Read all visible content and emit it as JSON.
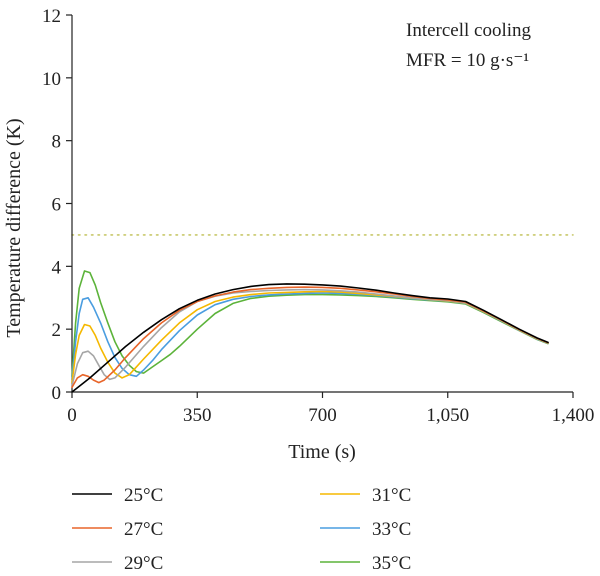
{
  "chart_data": {
    "type": "line",
    "xlabel": "Time (s)",
    "ylabel": "Temperature difference (K)",
    "xlim": [
      0,
      1400
    ],
    "ylim": [
      0,
      12
    ],
    "xticks": [
      0,
      350,
      700,
      1050,
      1400
    ],
    "xtick_labels": [
      "0",
      "350",
      "700",
      "1,050",
      "1,400"
    ],
    "yticks": [
      0,
      2,
      4,
      6,
      8,
      10,
      12
    ],
    "ytick_labels": [
      "0",
      "2",
      "4",
      "6",
      "8",
      "10",
      "12"
    ],
    "annotations": [
      "Intercell cooling",
      "MFR = 10 g·s⁻¹"
    ],
    "reference_line": {
      "y": 5,
      "style": "dotted",
      "color": "#c8c86a"
    },
    "grid": false,
    "legend_position": "bottom",
    "series": [
      {
        "name": "25°C",
        "color": "#000000",
        "x": [
          0,
          50,
          100,
          150,
          200,
          250,
          300,
          350,
          400,
          450,
          500,
          550,
          600,
          650,
          700,
          750,
          800,
          850,
          900,
          950,
          1000,
          1050,
          1100,
          1150,
          1200,
          1250,
          1300,
          1330
        ],
        "y": [
          0,
          0.45,
          0.95,
          1.45,
          1.9,
          2.3,
          2.65,
          2.92,
          3.12,
          3.26,
          3.36,
          3.42,
          3.44,
          3.43,
          3.41,
          3.37,
          3.31,
          3.24,
          3.15,
          3.07,
          3.0,
          2.96,
          2.88,
          2.6,
          2.3,
          2.0,
          1.72,
          1.58
        ]
      },
      {
        "name": "27°C",
        "color": "#e8652a",
        "x": [
          0,
          15,
          30,
          45,
          60,
          75,
          90,
          120,
          150,
          200,
          250,
          300,
          350,
          400,
          450,
          500,
          550,
          600,
          650,
          700,
          750,
          800,
          850,
          900,
          950,
          1000,
          1050,
          1100,
          1150,
          1200,
          1250,
          1300,
          1330
        ],
        "y": [
          0.15,
          0.45,
          0.55,
          0.5,
          0.38,
          0.3,
          0.38,
          0.7,
          1.1,
          1.7,
          2.2,
          2.6,
          2.88,
          3.06,
          3.18,
          3.26,
          3.3,
          3.33,
          3.34,
          3.33,
          3.3,
          3.25,
          3.19,
          3.12,
          3.04,
          2.98,
          2.93,
          2.86,
          2.58,
          2.29,
          1.99,
          1.71,
          1.57
        ]
      },
      {
        "name": "29°C",
        "color": "#a6a6a6",
        "x": [
          0,
          15,
          30,
          45,
          60,
          75,
          90,
          105,
          120,
          150,
          200,
          250,
          300,
          350,
          400,
          450,
          500,
          550,
          600,
          650,
          700,
          750,
          800,
          850,
          900,
          950,
          1000,
          1050,
          1100,
          1150,
          1200,
          1250,
          1300,
          1330
        ],
        "y": [
          0.2,
          0.9,
          1.25,
          1.3,
          1.15,
          0.85,
          0.55,
          0.4,
          0.45,
          0.8,
          1.45,
          2.05,
          2.55,
          2.88,
          3.05,
          3.15,
          3.2,
          3.23,
          3.25,
          3.26,
          3.25,
          3.22,
          3.18,
          3.12,
          3.06,
          3.0,
          2.95,
          2.91,
          2.84,
          2.57,
          2.28,
          1.98,
          1.7,
          1.57
        ]
      },
      {
        "name": "31°C",
        "color": "#f5b800",
        "x": [
          0,
          10,
          20,
          35,
          50,
          65,
          80,
          100,
          120,
          140,
          160,
          180,
          200,
          250,
          300,
          350,
          400,
          450,
          500,
          550,
          600,
          650,
          700,
          750,
          800,
          850,
          900,
          950,
          1000,
          1050,
          1100,
          1150,
          1200,
          1250,
          1300,
          1330
        ],
        "y": [
          0.3,
          1.2,
          1.8,
          2.15,
          2.1,
          1.8,
          1.4,
          0.95,
          0.6,
          0.45,
          0.55,
          0.8,
          1.05,
          1.65,
          2.2,
          2.62,
          2.88,
          3.02,
          3.1,
          3.15,
          3.17,
          3.19,
          3.2,
          3.18,
          3.14,
          3.09,
          3.04,
          2.99,
          2.94,
          2.9,
          2.83,
          2.56,
          2.27,
          1.97,
          1.69,
          1.56
        ]
      },
      {
        "name": "33°C",
        "color": "#4a9de0",
        "x": [
          0,
          10,
          20,
          30,
          45,
          60,
          80,
          100,
          120,
          140,
          160,
          180,
          200,
          225,
          250,
          300,
          350,
          400,
          450,
          500,
          550,
          600,
          650,
          700,
          750,
          800,
          850,
          900,
          950,
          1000,
          1050,
          1100,
          1150,
          1200,
          1250,
          1300,
          1330
        ],
        "y": [
          0.4,
          1.6,
          2.5,
          2.95,
          3.0,
          2.7,
          2.2,
          1.6,
          1.1,
          0.75,
          0.55,
          0.5,
          0.7,
          1.0,
          1.35,
          1.95,
          2.45,
          2.78,
          2.95,
          3.04,
          3.09,
          3.12,
          3.14,
          3.15,
          3.14,
          3.11,
          3.07,
          3.02,
          2.97,
          2.93,
          2.89,
          2.82,
          2.55,
          2.26,
          1.96,
          1.68,
          1.55
        ]
      },
      {
        "name": "35°C",
        "color": "#5cb33a",
        "x": [
          0,
          10,
          20,
          35,
          50,
          65,
          80,
          100,
          120,
          140,
          160,
          180,
          200,
          225,
          250,
          275,
          300,
          350,
          400,
          450,
          500,
          550,
          600,
          650,
          700,
          750,
          800,
          850,
          900,
          950,
          1000,
          1050,
          1100,
          1150,
          1200,
          1250,
          1300,
          1330
        ],
        "y": [
          0.5,
          2.2,
          3.3,
          3.85,
          3.8,
          3.4,
          2.85,
          2.2,
          1.6,
          1.15,
          0.85,
          0.65,
          0.6,
          0.8,
          1.0,
          1.2,
          1.45,
          2.0,
          2.5,
          2.82,
          2.98,
          3.05,
          3.08,
          3.1,
          3.1,
          3.09,
          3.07,
          3.04,
          3.0,
          2.95,
          2.91,
          2.87,
          2.8,
          2.53,
          2.24,
          1.95,
          1.67,
          1.54
        ]
      }
    ]
  }
}
